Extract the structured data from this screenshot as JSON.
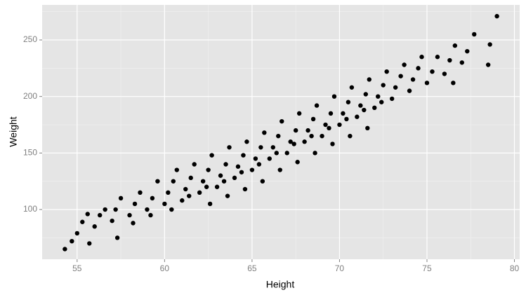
{
  "chart_data": {
    "type": "scatter",
    "x_label": "Height",
    "y_label": "Weight",
    "color": "#000000",
    "grid": true,
    "panel_color": "#e5e5e5",
    "xlim": [
      53.0,
      80.3
    ],
    "xticks": [
      55,
      60,
      65,
      70,
      75,
      80
    ],
    "ylim": [
      56,
      281
    ],
    "yticks": [
      100,
      150,
      200,
      250
    ],
    "x": [
      54.3,
      54.7,
      55.0,
      55.3,
      55.7,
      55.6,
      56.0,
      56.3,
      56.6,
      57.0,
      57.2,
      57.5,
      57.3,
      58.0,
      58.3,
      58.6,
      58.2,
      59.0,
      59.3,
      59.6,
      59.2,
      60.0,
      60.2,
      60.5,
      60.7,
      60.4,
      61.0,
      61.2,
      61.5,
      61.7,
      61.4,
      62.0,
      62.2,
      62.5,
      62.7,
      62.4,
      62.6,
      63.0,
      63.2,
      63.5,
      63.7,
      63.4,
      63.6,
      64.0,
      64.2,
      64.5,
      64.7,
      64.4,
      64.6,
      65.0,
      65.2,
      65.5,
      65.7,
      65.4,
      65.6,
      66.0,
      66.2,
      66.5,
      66.7,
      66.4,
      66.6,
      67.0,
      67.2,
      67.5,
      67.7,
      67.4,
      67.6,
      68.0,
      68.2,
      68.5,
      68.7,
      68.4,
      68.6,
      69.0,
      69.2,
      69.5,
      69.7,
      69.4,
      69.6,
      70.0,
      70.2,
      70.5,
      70.7,
      70.4,
      70.6,
      71.0,
      71.2,
      71.5,
      71.7,
      71.4,
      71.6,
      72.0,
      72.2,
      72.5,
      72.7,
      72.4,
      73.0,
      73.2,
      73.5,
      73.7,
      74.0,
      74.2,
      74.5,
      74.7,
      75.0,
      75.3,
      75.6,
      76.0,
      76.3,
      76.6,
      77.0,
      77.3,
      77.7,
      78.5,
      78.6,
      79.0,
      76.5
    ],
    "y": [
      65,
      72,
      79,
      89,
      70,
      96,
      85,
      95,
      100,
      90,
      100,
      110,
      75,
      95,
      105,
      115,
      88,
      100,
      110,
      125,
      95,
      105,
      115,
      125,
      135,
      100,
      108,
      118,
      128,
      140,
      112,
      115,
      125,
      135,
      148,
      120,
      105,
      120,
      130,
      140,
      155,
      125,
      112,
      128,
      138,
      148,
      160,
      133,
      118,
      135,
      145,
      155,
      168,
      140,
      125,
      145,
      155,
      165,
      178,
      150,
      135,
      150,
      160,
      170,
      185,
      158,
      142,
      160,
      170,
      180,
      192,
      165,
      150,
      165,
      175,
      185,
      200,
      172,
      158,
      175,
      185,
      195,
      208,
      180,
      165,
      182,
      192,
      202,
      215,
      188,
      172,
      190,
      200,
      210,
      222,
      195,
      198,
      208,
      218,
      228,
      205,
      215,
      225,
      235,
      212,
      222,
      235,
      220,
      232,
      245,
      230,
      240,
      255,
      228,
      246,
      271,
      212
    ]
  }
}
